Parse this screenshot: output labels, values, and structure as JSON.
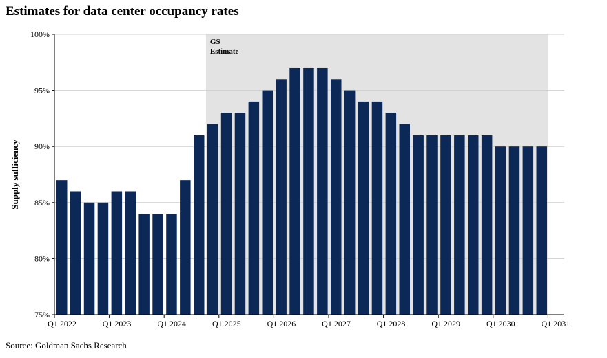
{
  "page": {
    "title": "Estimates for data center occupancy rates",
    "source": "Source: Goldman Sachs Research"
  },
  "chart_data": {
    "type": "bar",
    "title": "Estimates for data center occupancy rates",
    "ylabel": "Supply sufficiency",
    "xlabel": "",
    "ylim": [
      75,
      100
    ],
    "y_ticks": [
      "75%",
      "80%",
      "85%",
      "90%",
      "95%",
      "100%"
    ],
    "y_tick_values": [
      75,
      80,
      85,
      90,
      95,
      100
    ],
    "x_ticks": [
      "Q1 2022",
      "Q1 2023",
      "Q1 2024",
      "Q1 2025",
      "Q1 2026",
      "Q1 2027",
      "Q1 2028",
      "Q1 2029",
      "Q1 2030",
      "Q1 2031"
    ],
    "categories": [
      "Q1 2022",
      "Q2 2022",
      "Q3 2022",
      "Q4 2022",
      "Q1 2023",
      "Q2 2023",
      "Q3 2023",
      "Q4 2023",
      "Q1 2024",
      "Q2 2024",
      "Q3 2024",
      "Q4 2024",
      "Q1 2025",
      "Q2 2025",
      "Q3 2025",
      "Q4 2025",
      "Q1 2026",
      "Q2 2026",
      "Q3 2026",
      "Q4 2026",
      "Q1 2027",
      "Q2 2027",
      "Q3 2027",
      "Q4 2027",
      "Q1 2028",
      "Q2 2028",
      "Q3 2028",
      "Q4 2028",
      "Q1 2029",
      "Q2 2029",
      "Q3 2029",
      "Q4 2029",
      "Q1 2030",
      "Q2 2030",
      "Q3 2030",
      "Q4 2030"
    ],
    "values": [
      87,
      86,
      85,
      85,
      86,
      86,
      84,
      84,
      84,
      87,
      91,
      92,
      93,
      93,
      94,
      95,
      96,
      97,
      97,
      97,
      96,
      95,
      94,
      94,
      93,
      92,
      91,
      91,
      91,
      91,
      91,
      91,
      90,
      90,
      90,
      90
    ],
    "shaded_region": {
      "label_line1": "GS",
      "label_line2": "Estimate",
      "start_category": "Q4 2024"
    },
    "grid": true,
    "bar_color": "#0c2857",
    "shade_color": "#e3e3e3"
  }
}
